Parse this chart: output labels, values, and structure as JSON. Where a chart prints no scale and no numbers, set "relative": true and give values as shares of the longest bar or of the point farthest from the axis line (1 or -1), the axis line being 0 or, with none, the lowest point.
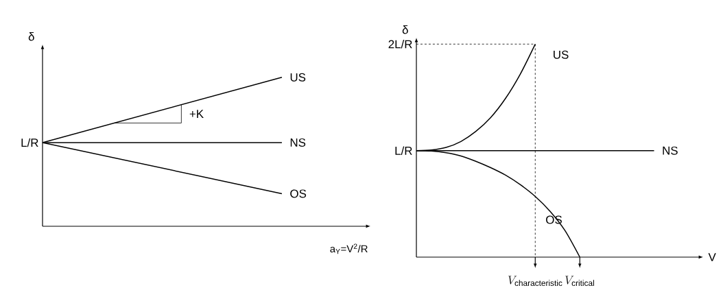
{
  "chart_data": [
    {
      "type": "line",
      "relative": true,
      "ylabel": "δ",
      "xlabel": "a$_{Y}$=V$^{2}$/R",
      "categories": [
        null,
        null
      ],
      "legend": false,
      "series": [
        {
          "name": "US",
          "color": "#000000",
          "values": [
            0.562,
            1
          ]
        },
        {
          "name": "NS",
          "color": "#000000",
          "values": [
            0.562,
            0.562
          ]
        },
        {
          "name": "OS",
          "color": "#000000",
          "values": [
            0.562,
            0.219
          ]
        }
      ],
      "annotations": [
        "L/R",
        "+K"
      ]
    },
    {
      "type": "line",
      "relative": true,
      "ylabel": "δ",
      "xlabel": "V",
      "legend": false,
      "categories": [
        null,
        null,
        null,
        null,
        null,
        null,
        null,
        null,
        null,
        null,
        null,
        null,
        null,
        null,
        null,
        null,
        null,
        null,
        null,
        null
      ],
      "series": [
        {
          "name": "US",
          "color": "#000000",
          "values": [
            0.5,
            0.503,
            0.515,
            0.543,
            0.59,
            0.655,
            0.745,
            0.86,
            1,
            null,
            null,
            null,
            null,
            null,
            null,
            null,
            null,
            null,
            null,
            null
          ]
        },
        {
          "name": "NS",
          "color": "#000000",
          "values": [
            0.5,
            0.5,
            0.5,
            0.5,
            0.5,
            0.5,
            0.5,
            0.5,
            0.5,
            0.5,
            0.5,
            0.5,
            0.5,
            0.5,
            0.5,
            0.5,
            0.5,
            null,
            null,
            null
          ]
        },
        {
          "name": "OS",
          "color": "#000000",
          "values": [
            0.5,
            0.498,
            0.49,
            0.475,
            0.45,
            0.42,
            0.385,
            0.34,
            0.285,
            0.215,
            0.125,
            0,
            null,
            null,
            null,
            null,
            null,
            null,
            null,
            null
          ]
        }
      ],
      "annotations": [
        "L/R",
        "2L/R",
        "V_{\\mathrm{characteristic}}",
        "V_{\\mathrm{critical}}"
      ]
    }
  ]
}
